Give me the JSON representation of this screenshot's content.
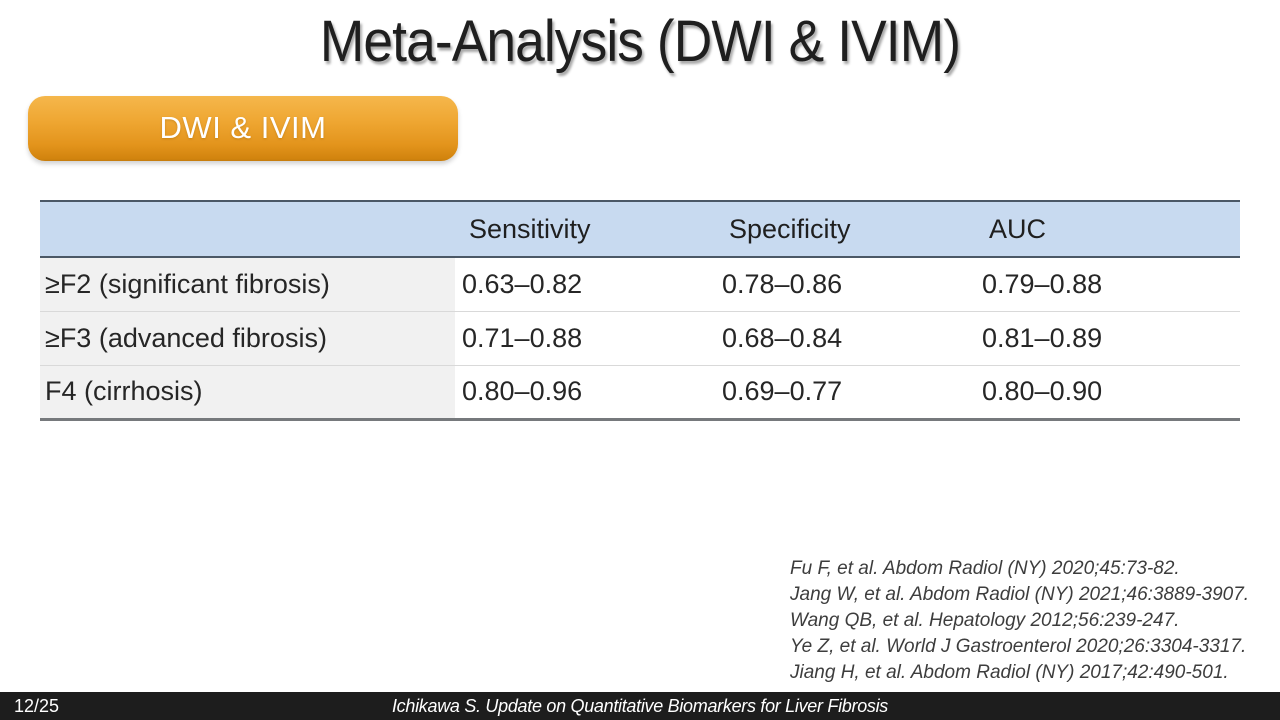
{
  "slide": {
    "title": "Meta-Analysis (DWI & IVIM)",
    "badge_label": "DWI & IVIM",
    "table": {
      "headers": [
        "",
        "Sensitivity",
        "Specificity",
        "AUC"
      ],
      "rows": [
        [
          "≥F2 (significant fibrosis)",
          "0.63–0.82",
          "0.78–0.86",
          "0.79–0.88"
        ],
        [
          "≥F3 (advanced fibrosis)",
          "0.71–0.88",
          "0.68–0.84",
          "0.81–0.89"
        ],
        [
          "F4 (cirrhosis)",
          "0.80–0.96",
          "0.69–0.77",
          "0.80–0.90"
        ]
      ]
    },
    "references": [
      "Fu F, et al. Abdom Radiol (NY) 2020;45:73-82.",
      "Jang W, et al. Abdom Radiol (NY) 2021;46:3889-3907.",
      "Wang QB, et al. Hepatology 2012;56:239-247.",
      "Ye Z, et al. World J Gastroenterol 2020;26:3304-3317.",
      "Jiang H, et al. Abdom Radiol (NY) 2017;42:490-501."
    ],
    "footer": {
      "page_number": "12/25",
      "citation": "Ichikawa S. Update on Quantitative Biomarkers for Liver Fibrosis"
    },
    "colors": {
      "badge_orange_top": "#f5b74c",
      "badge_orange_bottom": "#c67c0d",
      "table_header_blue": "#c8daf0",
      "table_label_gray": "#f1f1f1",
      "table_border_dark": "#4b5866",
      "footer_dark": "#1d1d1d",
      "title_text": "#1f1f1f"
    }
  }
}
